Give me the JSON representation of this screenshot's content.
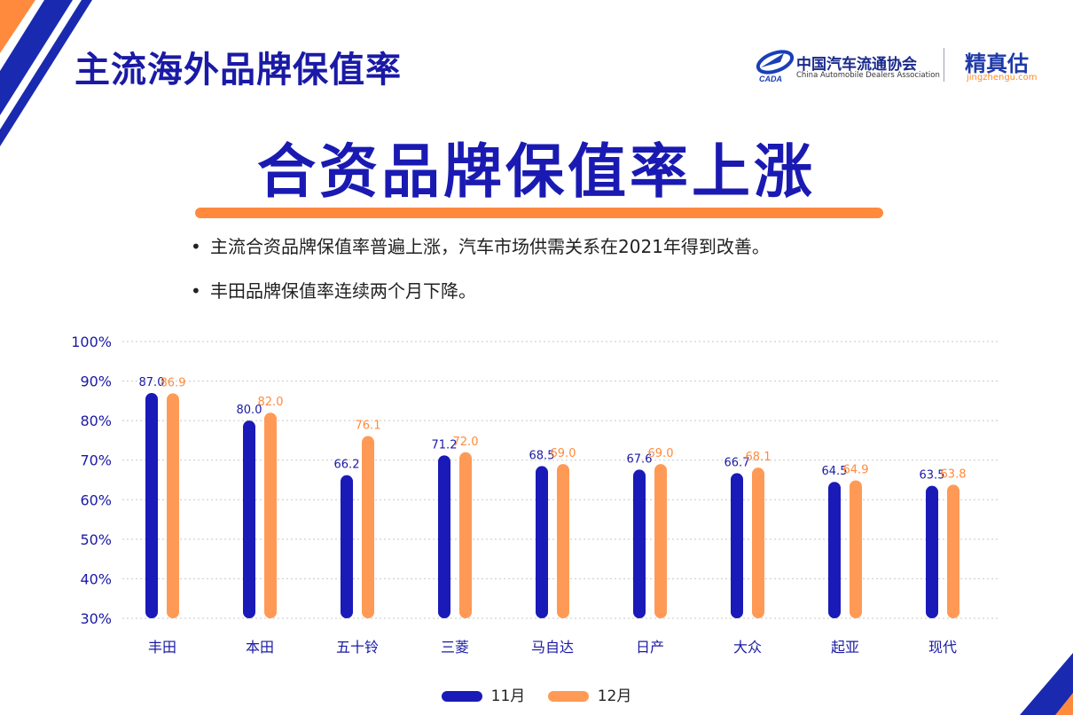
{
  "header": {
    "title": "主流海外品牌保值率",
    "org_name_cn": "中国汽车流通协会",
    "org_name_en": "China Automobile Dealers Association",
    "org_logo_text": "CADA",
    "brand_name": "精真估",
    "brand_url": "jingzhengu.com"
  },
  "headline": "合资品牌保值率上涨",
  "bullets": [
    "主流合资品牌保值率普遍上涨，汽车市场供需关系在2021年得到改善。",
    "丰田品牌保值率连续两个月下降。"
  ],
  "colors": {
    "title": "#1a1aa6",
    "accent_orange": "#ff8a3d",
    "series_11": "#1a1ab8",
    "series_12": "#ff9a56"
  },
  "chart_data": {
    "type": "bar",
    "categories": [
      "丰田",
      "本田",
      "五十铃",
      "三菱",
      "马自达",
      "日产",
      "大众",
      "起亚",
      "现代"
    ],
    "series": [
      {
        "name": "11月",
        "values": [
          87.0,
          80.0,
          66.2,
          71.2,
          68.5,
          67.6,
          66.7,
          64.5,
          63.5
        ]
      },
      {
        "name": "12月",
        "values": [
          86.9,
          82.0,
          76.1,
          72.0,
          69.0,
          69.0,
          68.1,
          64.9,
          63.8
        ]
      }
    ],
    "yticks": [
      "100%",
      "90%",
      "80%",
      "70%",
      "60%",
      "50%",
      "40%",
      "30%"
    ],
    "ylim": [
      30,
      100
    ],
    "grid": true,
    "legend": "bottom",
    "title": "",
    "xlabel": "",
    "ylabel": ""
  }
}
